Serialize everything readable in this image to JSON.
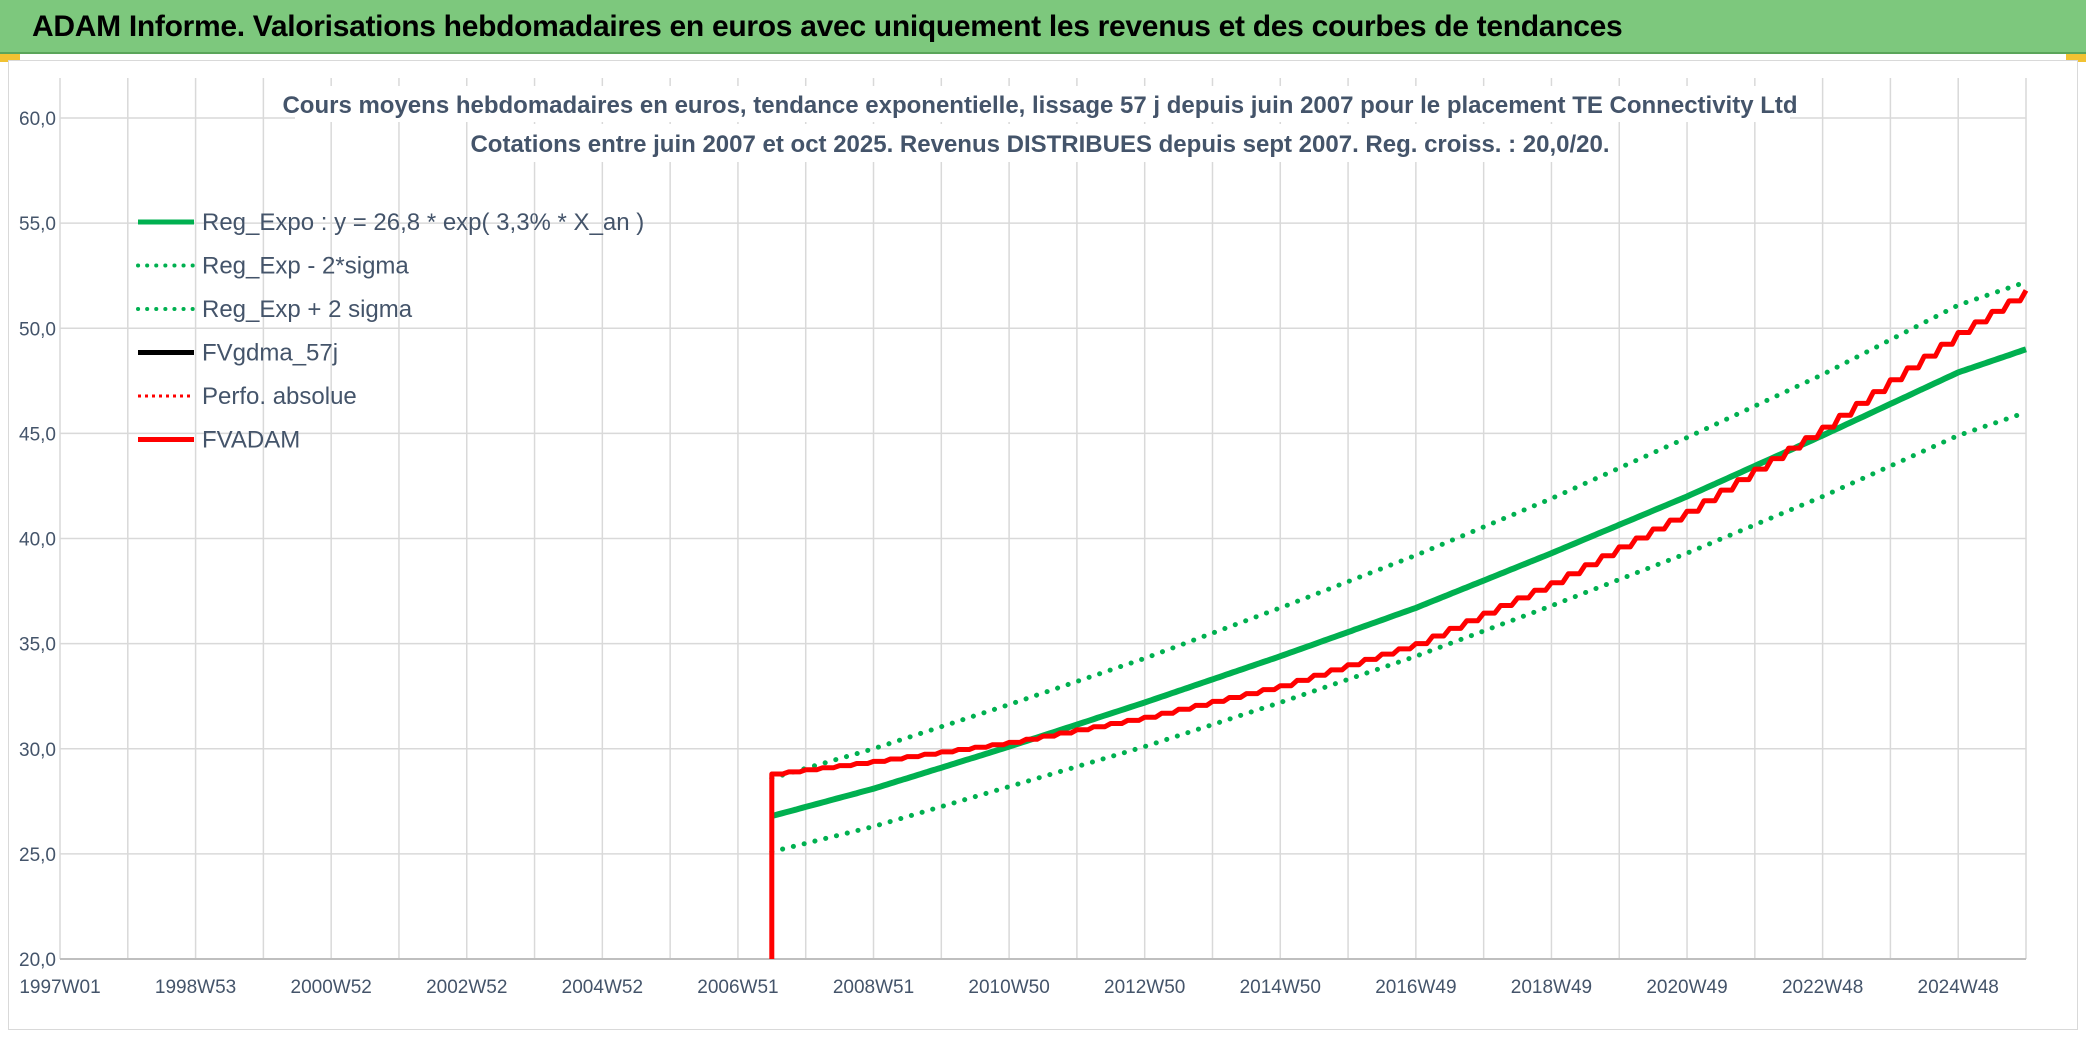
{
  "banner": {
    "title": "ADAM Informe. Valorisations hebdomadaires en euros avec uniquement les revenus et des courbes de tendances"
  },
  "colors": {
    "banner_bg": "#7dc87d",
    "trend_green": "#00b050",
    "adam_red": "#ff0000",
    "fvgdma_black": "#000000",
    "grid": "#d9d9d9",
    "text": "#44546a"
  },
  "chart_data": {
    "type": "line",
    "title": "Cours moyens hebdomadaires en euros, tendance exponentielle, lissage 57 j depuis juin 2007 pour le placement TE Connectivity Ltd",
    "subtitle": "Cotations entre juin 2007 et oct 2025. Revenus DISTRIBUES depuis sept 2007. Reg. croiss. : 20,0/20.",
    "xlabel": "",
    "ylabel": "",
    "x_range": [
      1997.0,
      2026.0
    ],
    "ylim": [
      20,
      60
    ],
    "y_ticks": [
      "20,0",
      "25,0",
      "30,0",
      "35,0",
      "40,0",
      "45,0",
      "50,0",
      "55,0",
      "60,0"
    ],
    "x_ticks": [
      {
        "label": "1997W01",
        "x": 1997.0
      },
      {
        "label": "1998W53",
        "x": 1999.0
      },
      {
        "label": "2000W52",
        "x": 2001.0
      },
      {
        "label": "2002W52",
        "x": 2003.0
      },
      {
        "label": "2004W52",
        "x": 2005.0
      },
      {
        "label": "2006W51",
        "x": 2007.0
      },
      {
        "label": "2008W51",
        "x": 2009.0
      },
      {
        "label": "2010W50",
        "x": 2011.0
      },
      {
        "label": "2012W50",
        "x": 2013.0
      },
      {
        "label": "2014W50",
        "x": 2015.0
      },
      {
        "label": "2016W49",
        "x": 2017.0
      },
      {
        "label": "2018W49",
        "x": 2019.0
      },
      {
        "label": "2020W49",
        "x": 2021.0
      },
      {
        "label": "2022W48",
        "x": 2023.0
      },
      {
        "label": "2024W48",
        "x": 2025.0
      }
    ],
    "grid": true,
    "legend_position": "top-left",
    "series": [
      {
        "name": "Reg_Expo : y = 26,8 * exp( 3,3% *  X_an )",
        "color": "#00b050",
        "style": "solid",
        "x": [
          2007.5,
          2009.0,
          2011.0,
          2013.0,
          2015.0,
          2017.0,
          2019.0,
          2021.0,
          2023.0,
          2025.0,
          2026.0
        ],
        "y": [
          26.8,
          28.1,
          30.1,
          32.2,
          34.4,
          36.7,
          39.3,
          42.0,
          44.9,
          47.9,
          49.0
        ]
      },
      {
        "name": "Reg_Exp - 2*sigma",
        "color": "#00b050",
        "style": "dotted",
        "x": [
          2007.5,
          2009.0,
          2011.0,
          2013.0,
          2015.0,
          2017.0,
          2019.0,
          2021.0,
          2023.0,
          2025.0,
          2026.0
        ],
        "y": [
          25.1,
          26.3,
          28.2,
          30.1,
          32.2,
          34.4,
          36.8,
          39.3,
          42.0,
          44.9,
          46.0
        ]
      },
      {
        "name": "Reg_Exp + 2 sigma",
        "color": "#00b050",
        "style": "dotted",
        "x": [
          2007.5,
          2009.0,
          2011.0,
          2013.0,
          2015.0,
          2017.0,
          2019.0,
          2021.0,
          2023.0,
          2025.0,
          2026.0
        ],
        "y": [
          28.6,
          30.0,
          32.1,
          34.3,
          36.7,
          39.2,
          41.9,
          44.8,
          47.8,
          51.1,
          52.2
        ]
      },
      {
        "name": "FVgdma_57j",
        "color": "#000000",
        "style": "solid",
        "x": [],
        "y": []
      },
      {
        "name": "Perfo. absolue",
        "color": "#ff0000",
        "style": "dotted",
        "x": [
          2007.5,
          2007.5,
          2009.0,
          2011.0,
          2013.0,
          2015.0,
          2017.0,
          2019.0,
          2021.0,
          2023.0,
          2025.0,
          2026.0
        ],
        "y": [
          20.0,
          28.8,
          29.4,
          30.3,
          31.5,
          33.0,
          35.0,
          37.9,
          41.3,
          45.3,
          49.8,
          51.8
        ]
      },
      {
        "name": "FVADAM",
        "color": "#ff0000",
        "style": "solid",
        "x": [
          2007.5,
          2007.5,
          2009.0,
          2011.0,
          2013.0,
          2015.0,
          2017.0,
          2019.0,
          2021.0,
          2023.0,
          2025.0,
          2026.0
        ],
        "y": [
          20.0,
          28.8,
          29.4,
          30.3,
          31.5,
          33.0,
          35.0,
          37.9,
          41.3,
          45.3,
          49.8,
          51.8
        ]
      }
    ]
  }
}
